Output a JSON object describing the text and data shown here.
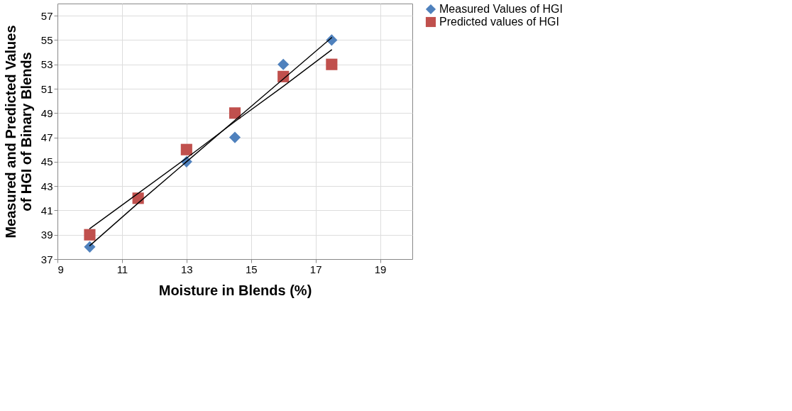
{
  "chart_data": {
    "type": "scatter",
    "xlabel": "Moisture in Blends (%)",
    "ylabel": "Measured and  Predicted Values of HGI of Binary Blends",
    "x": [
      10,
      11.5,
      13,
      14.5,
      16,
      17.5
    ],
    "series": [
      {
        "name": "Measured Values of  HGI",
        "color": "#4f81bd",
        "marker": "diamond",
        "values": [
          38,
          null,
          45,
          47,
          53,
          55
        ]
      },
      {
        "name": "Predicted values of   HGI",
        "color": "#c0504d",
        "marker": "square",
        "values": [
          39,
          42,
          46,
          49,
          52,
          53
        ]
      },
      {
        "type": "line",
        "color": "#000000",
        "values": [
          38.1,
          41.6,
          45.0,
          48.4,
          51.8,
          55.2
        ]
      },
      {
        "type": "line",
        "color": "#000000",
        "values": [
          39.5,
          42.4,
          45.3,
          48.3,
          51.2,
          54.2
        ]
      }
    ],
    "xlim": [
      9,
      20
    ],
    "xticks": [
      9,
      11,
      13,
      15,
      17,
      19
    ],
    "ylim": [
      37,
      58
    ],
    "yticks": [
      37,
      39,
      41,
      43,
      45,
      47,
      49,
      51,
      53,
      55,
      57
    ],
    "grid": true,
    "legend": "right"
  }
}
